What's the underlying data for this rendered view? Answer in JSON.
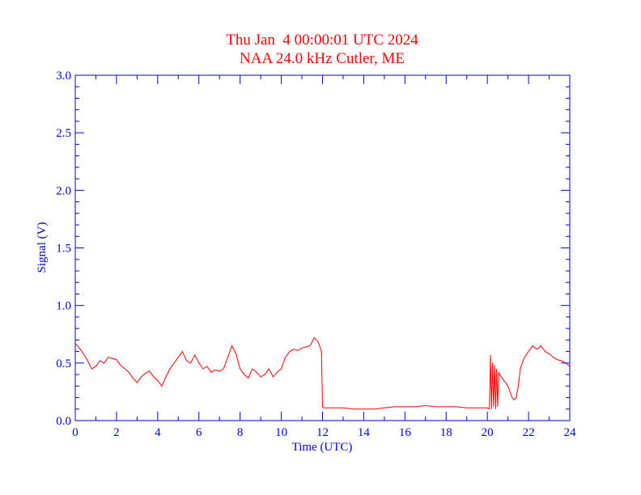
{
  "chart_data": {
    "type": "line",
    "title": "Thu Jan  4 00:00:01 UTC 2024",
    "subtitle": "NAA 24.0 kHz Cutler, ME",
    "xlabel": "Time (UTC)",
    "ylabel": "Signal (V)",
    "xlim": [
      0,
      24
    ],
    "ylim": [
      0,
      3.0
    ],
    "xticks": [
      0,
      2,
      4,
      6,
      8,
      10,
      12,
      14,
      16,
      18,
      20,
      22,
      24
    ],
    "xtick_labels": [
      "0",
      "2",
      "4",
      "6",
      "8",
      "10",
      "12",
      "14",
      "16",
      "18",
      "20",
      "22",
      "24"
    ],
    "yticks": [
      0.0,
      0.5,
      1.0,
      1.5,
      2.0,
      2.5,
      3.0
    ],
    "ytick_labels": [
      "0.0",
      "0.5",
      "1.0",
      "1.5",
      "2.0",
      "2.5",
      "3.0"
    ],
    "grid": false,
    "colors": {
      "line": "#ff0000",
      "axes": "#0000dd",
      "title": "#ff0000"
    },
    "series": [
      {
        "x": [
          0.0,
          0.2,
          0.4,
          0.6,
          0.8,
          1.0,
          1.2,
          1.4,
          1.6,
          1.8,
          2.0,
          2.2,
          2.4,
          2.6,
          2.8,
          3.0,
          3.2,
          3.4,
          3.6,
          3.8,
          4.0,
          4.2,
          4.4,
          4.6,
          4.8,
          5.0,
          5.2,
          5.4,
          5.6,
          5.8,
          6.0,
          6.2,
          6.4,
          6.6,
          6.8,
          7.0,
          7.2,
          7.4,
          7.6,
          7.8,
          8.0,
          8.2,
          8.4,
          8.6,
          8.8,
          9.0,
          9.2,
          9.4,
          9.6,
          9.8,
          10.0,
          10.2,
          10.4,
          10.6,
          10.8,
          11.0,
          11.2,
          11.4,
          11.6,
          11.8,
          11.95,
          12.0,
          12.05,
          12.2,
          12.5,
          13.0,
          13.5,
          14.0,
          14.5,
          15.0,
          15.5,
          16.0,
          16.5,
          17.0,
          17.5,
          18.0,
          18.5,
          19.0,
          19.5,
          20.0,
          20.1,
          20.15,
          20.2,
          20.25,
          20.3,
          20.35,
          20.4,
          20.45,
          20.5,
          20.55,
          20.6,
          20.8,
          21.0,
          21.2,
          21.3,
          21.4,
          21.5,
          21.6,
          21.7,
          21.8,
          22.0,
          22.2,
          22.4,
          22.6,
          22.8,
          23.0,
          23.2,
          23.4,
          23.6,
          23.8,
          24.0
        ],
        "y": [
          0.67,
          0.63,
          0.58,
          0.52,
          0.45,
          0.47,
          0.52,
          0.5,
          0.55,
          0.54,
          0.53,
          0.48,
          0.45,
          0.42,
          0.37,
          0.33,
          0.38,
          0.41,
          0.43,
          0.38,
          0.35,
          0.3,
          0.38,
          0.45,
          0.5,
          0.55,
          0.6,
          0.52,
          0.5,
          0.57,
          0.5,
          0.45,
          0.47,
          0.42,
          0.44,
          0.43,
          0.45,
          0.55,
          0.65,
          0.58,
          0.45,
          0.4,
          0.37,
          0.45,
          0.42,
          0.38,
          0.4,
          0.45,
          0.38,
          0.42,
          0.45,
          0.55,
          0.6,
          0.62,
          0.61,
          0.63,
          0.64,
          0.65,
          0.72,
          0.68,
          0.6,
          0.12,
          0.11,
          0.11,
          0.11,
          0.11,
          0.1,
          0.1,
          0.1,
          0.11,
          0.12,
          0.12,
          0.12,
          0.13,
          0.12,
          0.12,
          0.12,
          0.11,
          0.11,
          0.11,
          0.1,
          0.57,
          0.1,
          0.5,
          0.12,
          0.48,
          0.1,
          0.45,
          0.12,
          0.42,
          0.4,
          0.35,
          0.3,
          0.2,
          0.18,
          0.2,
          0.3,
          0.45,
          0.5,
          0.55,
          0.6,
          0.65,
          0.62,
          0.65,
          0.6,
          0.58,
          0.55,
          0.53,
          0.52,
          0.5,
          0.47
        ]
      }
    ]
  }
}
